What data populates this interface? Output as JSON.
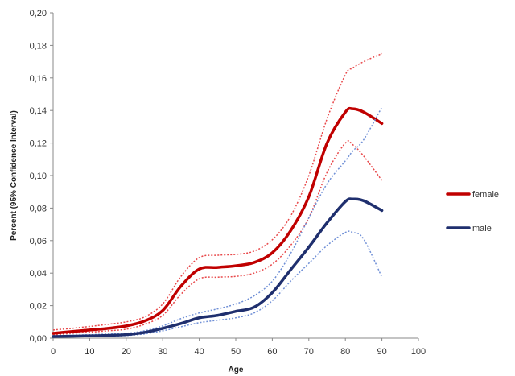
{
  "chart_data": {
    "type": "line",
    "xlabel": "Age",
    "ylabel": "Percent (95% Confidence Interval)",
    "xlim": [
      0,
      100
    ],
    "ylim": [
      0,
      0.2
    ],
    "x_ticks": [
      0,
      10,
      20,
      30,
      40,
      50,
      60,
      70,
      80,
      90,
      100
    ],
    "y_ticks": [
      0,
      0.02,
      0.04,
      0.06,
      0.08,
      0.1,
      0.12,
      0.14,
      0.16,
      0.18,
      0.2
    ],
    "y_tick_labels": [
      "0,00",
      "0,02",
      "0,04",
      "0,06",
      "0,08",
      "0,10",
      "0,12",
      "0,14",
      "0,16",
      "0,18",
      "0,20"
    ],
    "grid": false,
    "legend_position": "right",
    "x": [
      0,
      5,
      10,
      15,
      20,
      25,
      30,
      35,
      40,
      45,
      50,
      55,
      60,
      65,
      70,
      75,
      80,
      82,
      85,
      90
    ],
    "series": [
      {
        "name": "female",
        "color": "#c00000",
        "values": [
          0.003,
          0.004,
          0.005,
          0.006,
          0.0075,
          0.0105,
          0.017,
          0.032,
          0.0425,
          0.0435,
          0.0445,
          0.0465,
          0.0525,
          0.066,
          0.087,
          0.12,
          0.139,
          0.141,
          0.139,
          0.132
        ],
        "ci_upper": [
          0.005,
          0.006,
          0.0072,
          0.0085,
          0.01,
          0.013,
          0.021,
          0.038,
          0.0495,
          0.051,
          0.0515,
          0.0535,
          0.0605,
          0.075,
          0.1,
          0.135,
          0.162,
          0.166,
          0.17,
          0.175
        ],
        "ci_lower": [
          0.002,
          0.003,
          0.0037,
          0.0045,
          0.0055,
          0.0085,
          0.014,
          0.027,
          0.0365,
          0.0375,
          0.038,
          0.04,
          0.0455,
          0.057,
          0.074,
          0.102,
          0.12,
          0.119,
          0.112,
          0.097
        ]
      },
      {
        "name": "male",
        "color": "#1f2f6e",
        "values": [
          0.001,
          0.0012,
          0.0014,
          0.0017,
          0.0022,
          0.0035,
          0.006,
          0.009,
          0.0125,
          0.014,
          0.0165,
          0.019,
          0.028,
          0.042,
          0.056,
          0.071,
          0.084,
          0.0855,
          0.0845,
          0.0785
        ],
        "ci_upper": [
          0.0015,
          0.0018,
          0.0021,
          0.0025,
          0.003,
          0.0045,
          0.0075,
          0.012,
          0.0155,
          0.018,
          0.021,
          0.026,
          0.035,
          0.052,
          0.074,
          0.095,
          0.109,
          0.115,
          0.122,
          0.142
        ],
        "ci_lower": [
          0.0006,
          0.0008,
          0.001,
          0.0012,
          0.0016,
          0.0026,
          0.0045,
          0.007,
          0.0095,
          0.011,
          0.0125,
          0.0155,
          0.023,
          0.035,
          0.046,
          0.057,
          0.065,
          0.065,
          0.061,
          0.0375
        ]
      }
    ]
  }
}
